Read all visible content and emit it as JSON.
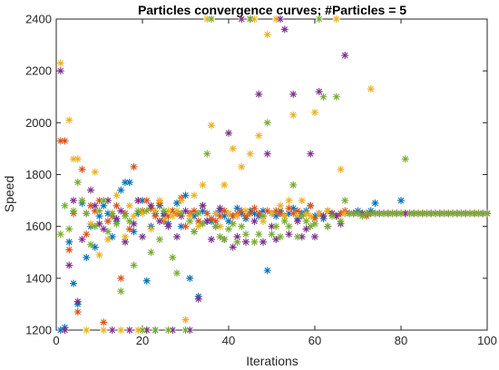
{
  "chart_data": {
    "type": "scatter",
    "title": "Particles convergence curves; #Particles = 5",
    "xlabel": "Iterations",
    "ylabel": "Speed",
    "xlim": [
      0,
      100
    ],
    "ylim": [
      1200,
      2400
    ],
    "xticks": [
      0,
      20,
      40,
      60,
      80,
      100
    ],
    "yticks": [
      1200,
      1400,
      1600,
      1800,
      2000,
      2200,
      2400
    ],
    "grid": false,
    "marker": "*",
    "series": [
      {
        "color": "#0072BD",
        "x": [
          1,
          2,
          3,
          4,
          5,
          6,
          7,
          8,
          9,
          10,
          11,
          12,
          13,
          14,
          15,
          16,
          17,
          18,
          19,
          20,
          21,
          22,
          23,
          24,
          25,
          26,
          27,
          28,
          29,
          30,
          31,
          32,
          33,
          34,
          35,
          36,
          37,
          38,
          39,
          40,
          41,
          42,
          43,
          44,
          45,
          46,
          47,
          48,
          49,
          50,
          51,
          52,
          53,
          54,
          55,
          56,
          57,
          58,
          59,
          60,
          61,
          62,
          63,
          64,
          65,
          66,
          67,
          68,
          69,
          70,
          71,
          72,
          73,
          74,
          75,
          76,
          77,
          78,
          79,
          80,
          81,
          82,
          83,
          84,
          85,
          86,
          87,
          88,
          89,
          90,
          91,
          92,
          93,
          94,
          95,
          96,
          97,
          98,
          99,
          100
        ],
        "y": [
          1200,
          1210,
          1540,
          1380,
          1300,
          1690,
          1480,
          1600,
          1520,
          1640,
          1680,
          1650,
          1560,
          1620,
          1740,
          1770,
          1770,
          1580,
          1650,
          1700,
          1390,
          1600,
          1650,
          1680,
          1640,
          1610,
          1660,
          1690,
          1600,
          1720,
          1400,
          1640,
          1330,
          1660,
          1620,
          1620,
          1650,
          1660,
          1640,
          1620,
          1640,
          1670,
          1650,
          1630,
          1660,
          1650,
          1640,
          1660,
          1430,
          1650,
          1640,
          1660,
          1640,
          1650,
          1670,
          1630,
          1650,
          1660,
          1680,
          1640,
          1650,
          1630,
          1660,
          1650,
          1640,
          1650,
          1650,
          1650,
          1650,
          1660,
          1650,
          1650,
          1660,
          1690,
          1650,
          1650,
          1650,
          1650,
          1650,
          1700,
          1650,
          1650,
          1650,
          1650,
          1650,
          1650,
          1650,
          1650,
          1650,
          1650,
          1650,
          1650,
          1650,
          1650,
          1650,
          1650,
          1650,
          1650,
          1650,
          1650
        ]
      },
      {
        "color": "#D95319",
        "x": [
          1,
          2,
          3,
          4,
          5,
          6,
          7,
          8,
          9,
          10,
          11,
          12,
          13,
          14,
          15,
          16,
          17,
          18,
          19,
          20,
          21,
          22,
          23,
          24,
          25,
          26,
          27,
          28,
          29,
          30,
          31,
          32,
          33,
          34,
          35,
          36,
          37,
          38,
          39,
          40,
          41,
          42,
          43,
          44,
          45,
          46,
          47,
          48,
          49,
          50,
          51,
          52,
          53,
          54,
          55,
          56,
          57,
          58,
          59,
          60,
          61,
          62,
          63,
          64,
          65,
          66,
          67,
          68,
          69,
          70,
          71,
          72,
          73,
          74,
          75,
          76,
          77,
          78,
          79,
          80,
          81,
          82,
          83,
          84,
          85,
          86,
          87,
          88,
          89,
          90,
          91,
          92,
          93,
          94,
          95,
          96,
          97,
          98,
          99,
          100
        ],
        "y": [
          1930,
          1930,
          1510,
          1650,
          1270,
          1820,
          1570,
          1680,
          1660,
          1700,
          1230,
          1620,
          1640,
          1680,
          1400,
          1650,
          1590,
          1830,
          1700,
          1660,
          1700,
          1670,
          1640,
          1690,
          1620,
          1640,
          1660,
          1650,
          1710,
          1600,
          1650,
          1660,
          1620,
          1680,
          1650,
          1630,
          1620,
          1640,
          1660,
          1650,
          1640,
          1650,
          1660,
          1640,
          1650,
          1670,
          1650,
          1640,
          1660,
          1650,
          1660,
          1650,
          1640,
          1670,
          1650,
          1660,
          1640,
          1650,
          1680,
          1630,
          1650,
          1640,
          1660,
          1650,
          1640,
          1650,
          1660,
          1650,
          1650,
          1650,
          1650,
          1640,
          1650,
          1650,
          1650,
          1650,
          1650,
          1650,
          1650,
          1650,
          1650,
          1650,
          1650,
          1650,
          1650,
          1650,
          1650,
          1650,
          1650,
          1650,
          1650,
          1650,
          1650,
          1650,
          1650,
          1650,
          1650,
          1650,
          1650,
          1650
        ]
      },
      {
        "color": "#EDB120",
        "x": [
          1,
          2,
          3,
          4,
          5,
          6,
          7,
          8,
          9,
          10,
          11,
          12,
          13,
          14,
          15,
          16,
          17,
          18,
          19,
          20,
          21,
          22,
          23,
          24,
          25,
          26,
          27,
          28,
          29,
          30,
          31,
          32,
          33,
          34,
          35,
          36,
          37,
          38,
          39,
          40,
          41,
          42,
          43,
          44,
          45,
          46,
          47,
          48,
          49,
          50,
          51,
          52,
          53,
          54,
          55,
          56,
          57,
          58,
          59,
          60,
          61,
          62,
          63,
          64,
          65,
          66,
          67,
          68,
          69,
          70,
          71,
          72,
          73,
          74,
          75,
          76,
          77,
          78,
          79,
          80,
          81,
          82,
          83,
          84,
          85,
          86,
          87,
          88,
          89,
          90,
          91,
          92,
          93,
          94,
          95,
          96,
          97,
          98,
          99,
          100
        ],
        "y": [
          2230,
          1200,
          2010,
          1860,
          1860,
          1700,
          1200,
          1610,
          1810,
          1490,
          1200,
          1550,
          1650,
          1720,
          1200,
          1560,
          1680,
          1640,
          1200,
          1650,
          1200,
          1590,
          1660,
          1700,
          1630,
          1660,
          1640,
          1660,
          1700,
          1240,
          1640,
          1720,
          1600,
          1760,
          2400,
          1990,
          1650,
          1600,
          1760,
          1650,
          1900,
          1640,
          1830,
          1660,
          1880,
          2400,
          1950,
          1620,
          2340,
          1650,
          2400,
          1680,
          1640,
          1700,
          2030,
          1640,
          1700,
          1650,
          1640,
          2040,
          1650,
          1640,
          1660,
          1650,
          2400,
          1820,
          1650,
          1650,
          1650,
          1650,
          1650,
          1650,
          2130,
          1650,
          1650,
          1650,
          1650,
          1650,
          1650,
          1650,
          1650,
          1650,
          1650,
          1650,
          1650,
          1650,
          1650,
          1650,
          1650,
          1650,
          1650,
          1650,
          1650,
          1650,
          1650,
          1650,
          1650,
          1650,
          1650,
          1650
        ]
      },
      {
        "color": "#7E2F8E",
        "x": [
          1,
          2,
          3,
          4,
          5,
          6,
          7,
          8,
          9,
          10,
          11,
          12,
          13,
          14,
          15,
          16,
          17,
          18,
          19,
          20,
          21,
          22,
          23,
          24,
          25,
          26,
          27,
          28,
          29,
          30,
          31,
          32,
          33,
          34,
          35,
          36,
          37,
          38,
          39,
          40,
          41,
          42,
          43,
          44,
          45,
          46,
          47,
          48,
          49,
          50,
          51,
          52,
          53,
          54,
          55,
          56,
          57,
          58,
          59,
          60,
          61,
          62,
          63,
          64,
          65,
          66,
          67,
          68,
          69,
          70,
          71,
          72,
          73,
          74,
          75,
          76,
          77,
          78,
          79,
          80,
          81,
          82,
          83,
          84,
          85,
          86,
          87,
          88,
          89,
          90,
          91,
          92,
          93,
          94,
          95,
          96,
          97,
          98,
          99,
          100
        ],
        "y": [
          2200,
          1200,
          1450,
          1700,
          1310,
          1550,
          1650,
          1740,
          1680,
          1610,
          1590,
          1700,
          1200,
          1630,
          1660,
          1540,
          1200,
          1610,
          1700,
          1560,
          1200,
          1680,
          1200,
          1620,
          1650,
          1600,
          1200,
          1560,
          1640,
          1660,
          1200,
          1580,
          1320,
          1680,
          1620,
          1550,
          1600,
          1670,
          1550,
          1960,
          1520,
          1560,
          2400,
          1540,
          2400,
          1620,
          2110,
          1540,
          1880,
          1600,
          1550,
          2400,
          2360,
          1570,
          2110,
          1620,
          1560,
          1590,
          1880,
          1560,
          2120,
          1640,
          1600,
          1650,
          1640,
          1610,
          2260,
          1650,
          1650,
          1650,
          1650,
          1650,
          1650,
          1650,
          1650,
          1650,
          1650,
          1650,
          1650,
          1650,
          1650,
          1650,
          1650,
          1650,
          1650,
          1650,
          1650,
          1650,
          1650,
          1650,
          1650,
          1650,
          1650,
          1650,
          1650,
          1650,
          1650,
          1650,
          1650,
          1650
        ]
      },
      {
        "color": "#77AC30",
        "x": [
          1,
          2,
          3,
          4,
          5,
          6,
          7,
          8,
          9,
          10,
          11,
          12,
          13,
          14,
          15,
          16,
          17,
          18,
          19,
          20,
          21,
          22,
          23,
          24,
          25,
          26,
          27,
          28,
          29,
          30,
          31,
          32,
          33,
          34,
          35,
          36,
          37,
          38,
          39,
          40,
          41,
          42,
          43,
          44,
          45,
          46,
          47,
          48,
          49,
          50,
          51,
          52,
          53,
          54,
          55,
          56,
          57,
          58,
          59,
          60,
          61,
          62,
          63,
          64,
          65,
          66,
          67,
          68,
          69,
          70,
          71,
          72,
          73,
          74,
          75,
          76,
          77,
          78,
          79,
          80,
          81,
          82,
          83,
          84,
          85,
          86,
          87,
          88,
          89,
          90,
          91,
          92,
          93,
          94,
          95,
          96,
          97,
          98,
          99,
          100
        ],
        "y": [
          1570,
          1680,
          1590,
          1660,
          1770,
          1700,
          1650,
          1530,
          1600,
          1660,
          1700,
          1580,
          1650,
          1610,
          1350,
          1640,
          1620,
          1450,
          1660,
          1200,
          1660,
          1500,
          1200,
          1550,
          1660,
          1200,
          1480,
          1420,
          1650,
          1200,
          1620,
          1580,
          1650,
          1610,
          1880,
          2400,
          1600,
          1560,
          1550,
          1590,
          1610,
          1540,
          1600,
          1570,
          2400,
          1540,
          1570,
          1640,
          2000,
          1570,
          1600,
          1560,
          1620,
          1600,
          1760,
          1560,
          1640,
          1620,
          1600,
          1610,
          2400,
          2100,
          1600,
          1640,
          2100,
          1620,
          1700,
          1650,
          1650,
          1650,
          1640,
          1650,
          1650,
          1650,
          1650,
          1650,
          1650,
          1650,
          1650,
          1650,
          1860,
          1650,
          1650,
          1650,
          1650,
          1650,
          1650,
          1650,
          1650,
          1650,
          1650,
          1650,
          1650,
          1650,
          1650,
          1650,
          1650,
          1650,
          1650,
          1650
        ]
      }
    ]
  }
}
